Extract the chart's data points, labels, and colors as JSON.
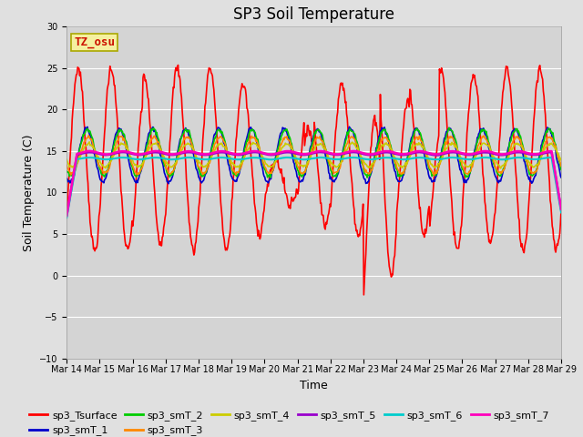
{
  "title": "SP3 Soil Temperature",
  "xlabel": "Time",
  "ylabel": "Soil Temperature (C)",
  "ylim": [
    -10,
    30
  ],
  "xtick_labels": [
    "Mar 14",
    "Mar 15",
    "Mar 16",
    "Mar 17",
    "Mar 18",
    "Mar 19",
    "Mar 20",
    "Mar 21",
    "Mar 22",
    "Mar 23",
    "Mar 24",
    "Mar 25",
    "Mar 26",
    "Mar 27",
    "Mar 28",
    "Mar 29"
  ],
  "annotation_text": "TZ_osu",
  "annotation_box_facecolor": "#f5f0a0",
  "annotation_box_edgecolor": "#aaa800",
  "annotation_text_color": "#cc1100",
  "fig_facecolor": "#e0e0e0",
  "plot_facecolor": "#d4d4d4",
  "series_colors": {
    "sp3_Tsurface": "#ff0000",
    "sp3_smT_1": "#0000cc",
    "sp3_smT_2": "#00cc00",
    "sp3_smT_3": "#ff8800",
    "sp3_smT_4": "#cccc00",
    "sp3_smT_5": "#9900cc",
    "sp3_smT_6": "#00cccc",
    "sp3_smT_7": "#ff00bb"
  },
  "title_fontsize": 12,
  "axis_label_fontsize": 9,
  "tick_fontsize": 7,
  "legend_fontsize": 8
}
